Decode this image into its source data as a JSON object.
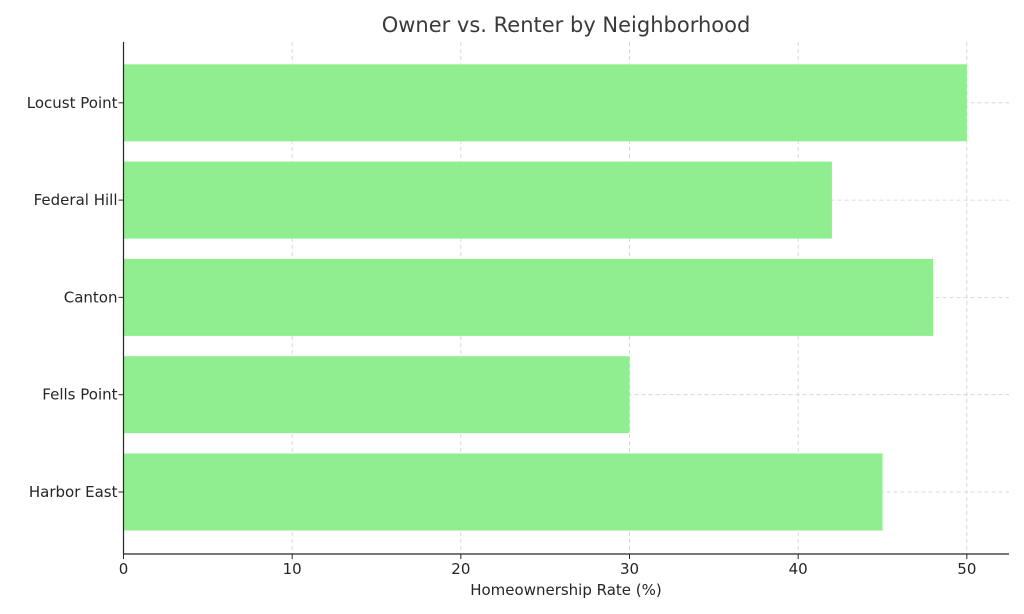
{
  "chart_data": {
    "type": "bar",
    "orientation": "horizontal",
    "title": "Owner vs. Renter by Neighborhood",
    "xlabel": "Homeownership Rate (%)",
    "ylabel": "",
    "categories": [
      "Harbor East",
      "Fells Point",
      "Canton",
      "Federal Hill",
      "Locust Point"
    ],
    "values": [
      45,
      30,
      48,
      42,
      50
    ],
    "xlim": [
      0,
      52.5
    ],
    "xticks": [
      0,
      10,
      20,
      30,
      40,
      50
    ],
    "grid": true,
    "bar_color": "#90ee90"
  }
}
